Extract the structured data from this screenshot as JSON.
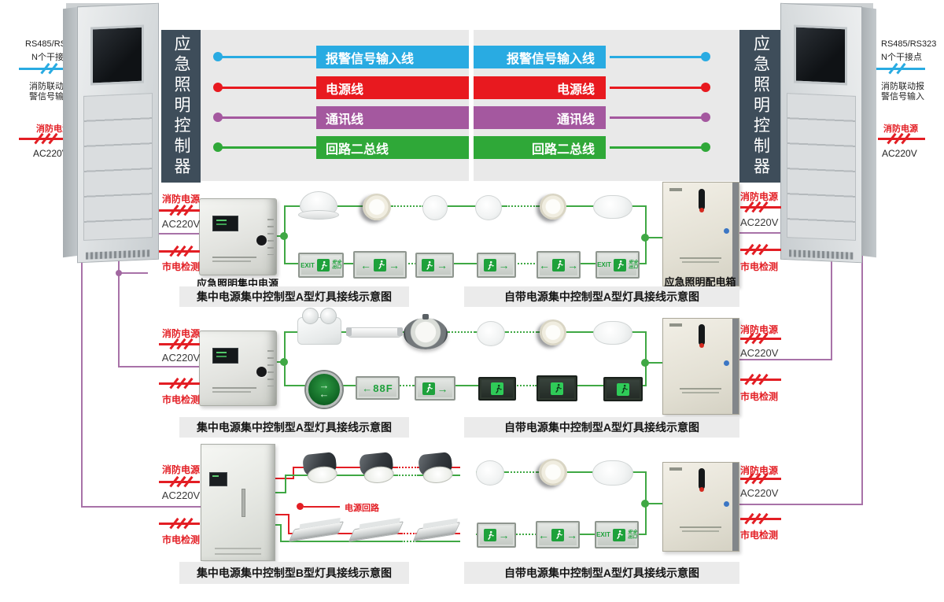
{
  "controller": {
    "title": "应急照明控制器"
  },
  "legend": {
    "items": [
      {
        "label": "报警信号输入线",
        "color": "#29ABE2"
      },
      {
        "label": "电源线",
        "color": "#E8191F"
      },
      {
        "label": "通讯线",
        "color": "#A4589F"
      },
      {
        "label": "回路二总线",
        "color": "#2FA838"
      }
    ]
  },
  "ann": {
    "rs485": "RS485/RS323",
    "dry": "N个干接点",
    "fl1": "消防联动报",
    "fl2": "警信号输入",
    "fire_power": "消防电源",
    "ac": "AC220V"
  },
  "wl": {
    "fire_power": "消防电源",
    "ac": "AC220V",
    "mains": "市电检测",
    "power_loop": "电源回路"
  },
  "boxes": {
    "central_power_label": "应急照明集中电源",
    "distribution_box_label": "应急照明配电箱"
  },
  "captions": {
    "row1_left": "集中电源集中控制型A型灯具接线示意图",
    "row1_right": "自带电源集中控制型A型灯具接线示意图",
    "row2_left": "集中电源集中控制型A型灯具接线示意图",
    "row2_right": "自带电源集中控制型A型灯具接线示意图",
    "row3_left": "集中电源集中控制型B型灯具接线示意图",
    "row3_right": "自带电源集中控制型A型灯具接线示意图"
  },
  "sign": {
    "exit": "EXIT",
    "safe1": "安全",
    "safe2": "出口",
    "floor": "←88F",
    "left": "←",
    "right": "→"
  },
  "colors": {
    "alarm_line": "#29ABE2",
    "power_line": "#E8191F",
    "comm_line": "#A4589F",
    "loop_line": "#2FA838",
    "loop_wire": "#3FA844",
    "comm_wire": "#A872A8",
    "power_wire": "#E31E24",
    "controller_bar": "#3E4D5A",
    "panel_bg": "#E9E9E9",
    "caption_bg": "#EBEBEB"
  },
  "icons": {
    "fixtures": [
      "dome-light",
      "recessed-downlight",
      "bulkhead-light",
      "oval-bulkhead-light",
      "twin-spot-emergency-light",
      "tube-light",
      "highbay-light",
      "cylinder-downlight",
      "batten-light",
      "exit-sign",
      "floor-number-sign",
      "direction-disc-sign",
      "running-man"
    ]
  }
}
